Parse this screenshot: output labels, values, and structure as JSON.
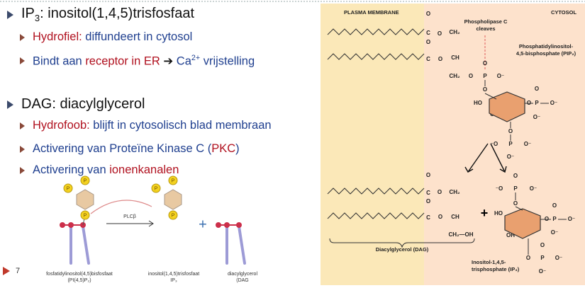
{
  "slide": {
    "number": "7",
    "bullets": [
      {
        "level": 1,
        "segments": [
          {
            "text": "IP"
          },
          {
            "text": "3",
            "pos": "sub"
          },
          {
            "text": ": inositol(1,4,5)trisfosfaat"
          }
        ]
      },
      {
        "level": 2,
        "segments": [
          {
            "text": "Hydrofiel:",
            "color": "#b0101e"
          },
          {
            "text": " diffundeert in cytosol",
            "color": "#1f3f8f"
          }
        ]
      },
      {
        "level": 2,
        "segments": [
          {
            "text": "Bindt aan ",
            "color": "#1f3f8f"
          },
          {
            "text": "receptor in ER",
            "color": "#b0101e"
          },
          {
            "text": " ➔ ",
            "color": "#111111"
          },
          {
            "text": "Ca",
            "color": "#1f3f8f"
          },
          {
            "text": "2+",
            "color": "#1f3f8f",
            "pos": "sup"
          },
          {
            "text": " vrijstelling",
            "color": "#1f3f8f"
          }
        ]
      },
      {
        "level": 1,
        "segments": [
          {
            "text": "DAG: diacylglycerol"
          }
        ]
      },
      {
        "level": 2,
        "segments": [
          {
            "text": "Hydrofoob:",
            "color": "#b0101e"
          },
          {
            "text": " blijft in cytosolisch blad membraan",
            "color": "#1f3f8f"
          }
        ]
      },
      {
        "level": 2,
        "segments": [
          {
            "text": "Activering van Proteïne Kinase C (",
            "color": "#1f3f8f"
          },
          {
            "text": "PKC",
            "color": "#b0101e"
          },
          {
            "text": ")",
            "color": "#1f3f8f"
          }
        ]
      },
      {
        "level": 2,
        "segments": [
          {
            "text": "Activering van ",
            "color": "#1f3f8f"
          },
          {
            "text": "ionenkanalen",
            "color": "#b0101e"
          }
        ]
      }
    ]
  },
  "diagram_left": {
    "phosphate_label": "P",
    "enzyme": "PLCβ",
    "plus": "+",
    "pip2_label": [
      "fosfatidylinositol(4,5)bisfosfaat",
      "(PI(4,5)P₂)"
    ],
    "ip3_label": [
      "inositol(1,4,5)trisfosfaat",
      "IP₃"
    ],
    "dag_label": [
      "diacylglycerol",
      "(DAG"
    ]
  },
  "diagram_right": {
    "membrane": "PLASMA MEMBRANE",
    "cytosol": "CYTOSOL",
    "enzyme": [
      "Phospholipase C",
      "cleaves"
    ],
    "pip2": [
      "Phosphatidylinositol-",
      "4,5-bisphosphate (PIP₂)"
    ],
    "dag": "Diacylglycerol (DAG)",
    "ip3": [
      "Inositol-1,4,5-",
      "trisphosphate (IP₃)"
    ],
    "plus": "+",
    "atoms": [
      "O",
      "C",
      "O",
      "CH₂",
      "O",
      "C",
      "O",
      "CH",
      "CH₂",
      "O",
      "P",
      "O⁻",
      "O",
      "O",
      "HO",
      "HO",
      "OH",
      "O",
      "P",
      "O⁻",
      "O",
      "O⁻",
      "O",
      "⁻O",
      "P",
      "O⁻",
      "O⁻",
      "O",
      "C",
      "O",
      "CH₂",
      "O",
      "C",
      "O",
      "CH",
      "CH₂—OH",
      "⁻O",
      "P",
      "O⁻",
      "O",
      "O",
      "HO",
      "HO",
      "OH",
      "O",
      "P",
      "O⁻",
      "O",
      "O⁻",
      "O",
      "P",
      "O⁻",
      "O",
      "O⁻"
    ]
  }
}
